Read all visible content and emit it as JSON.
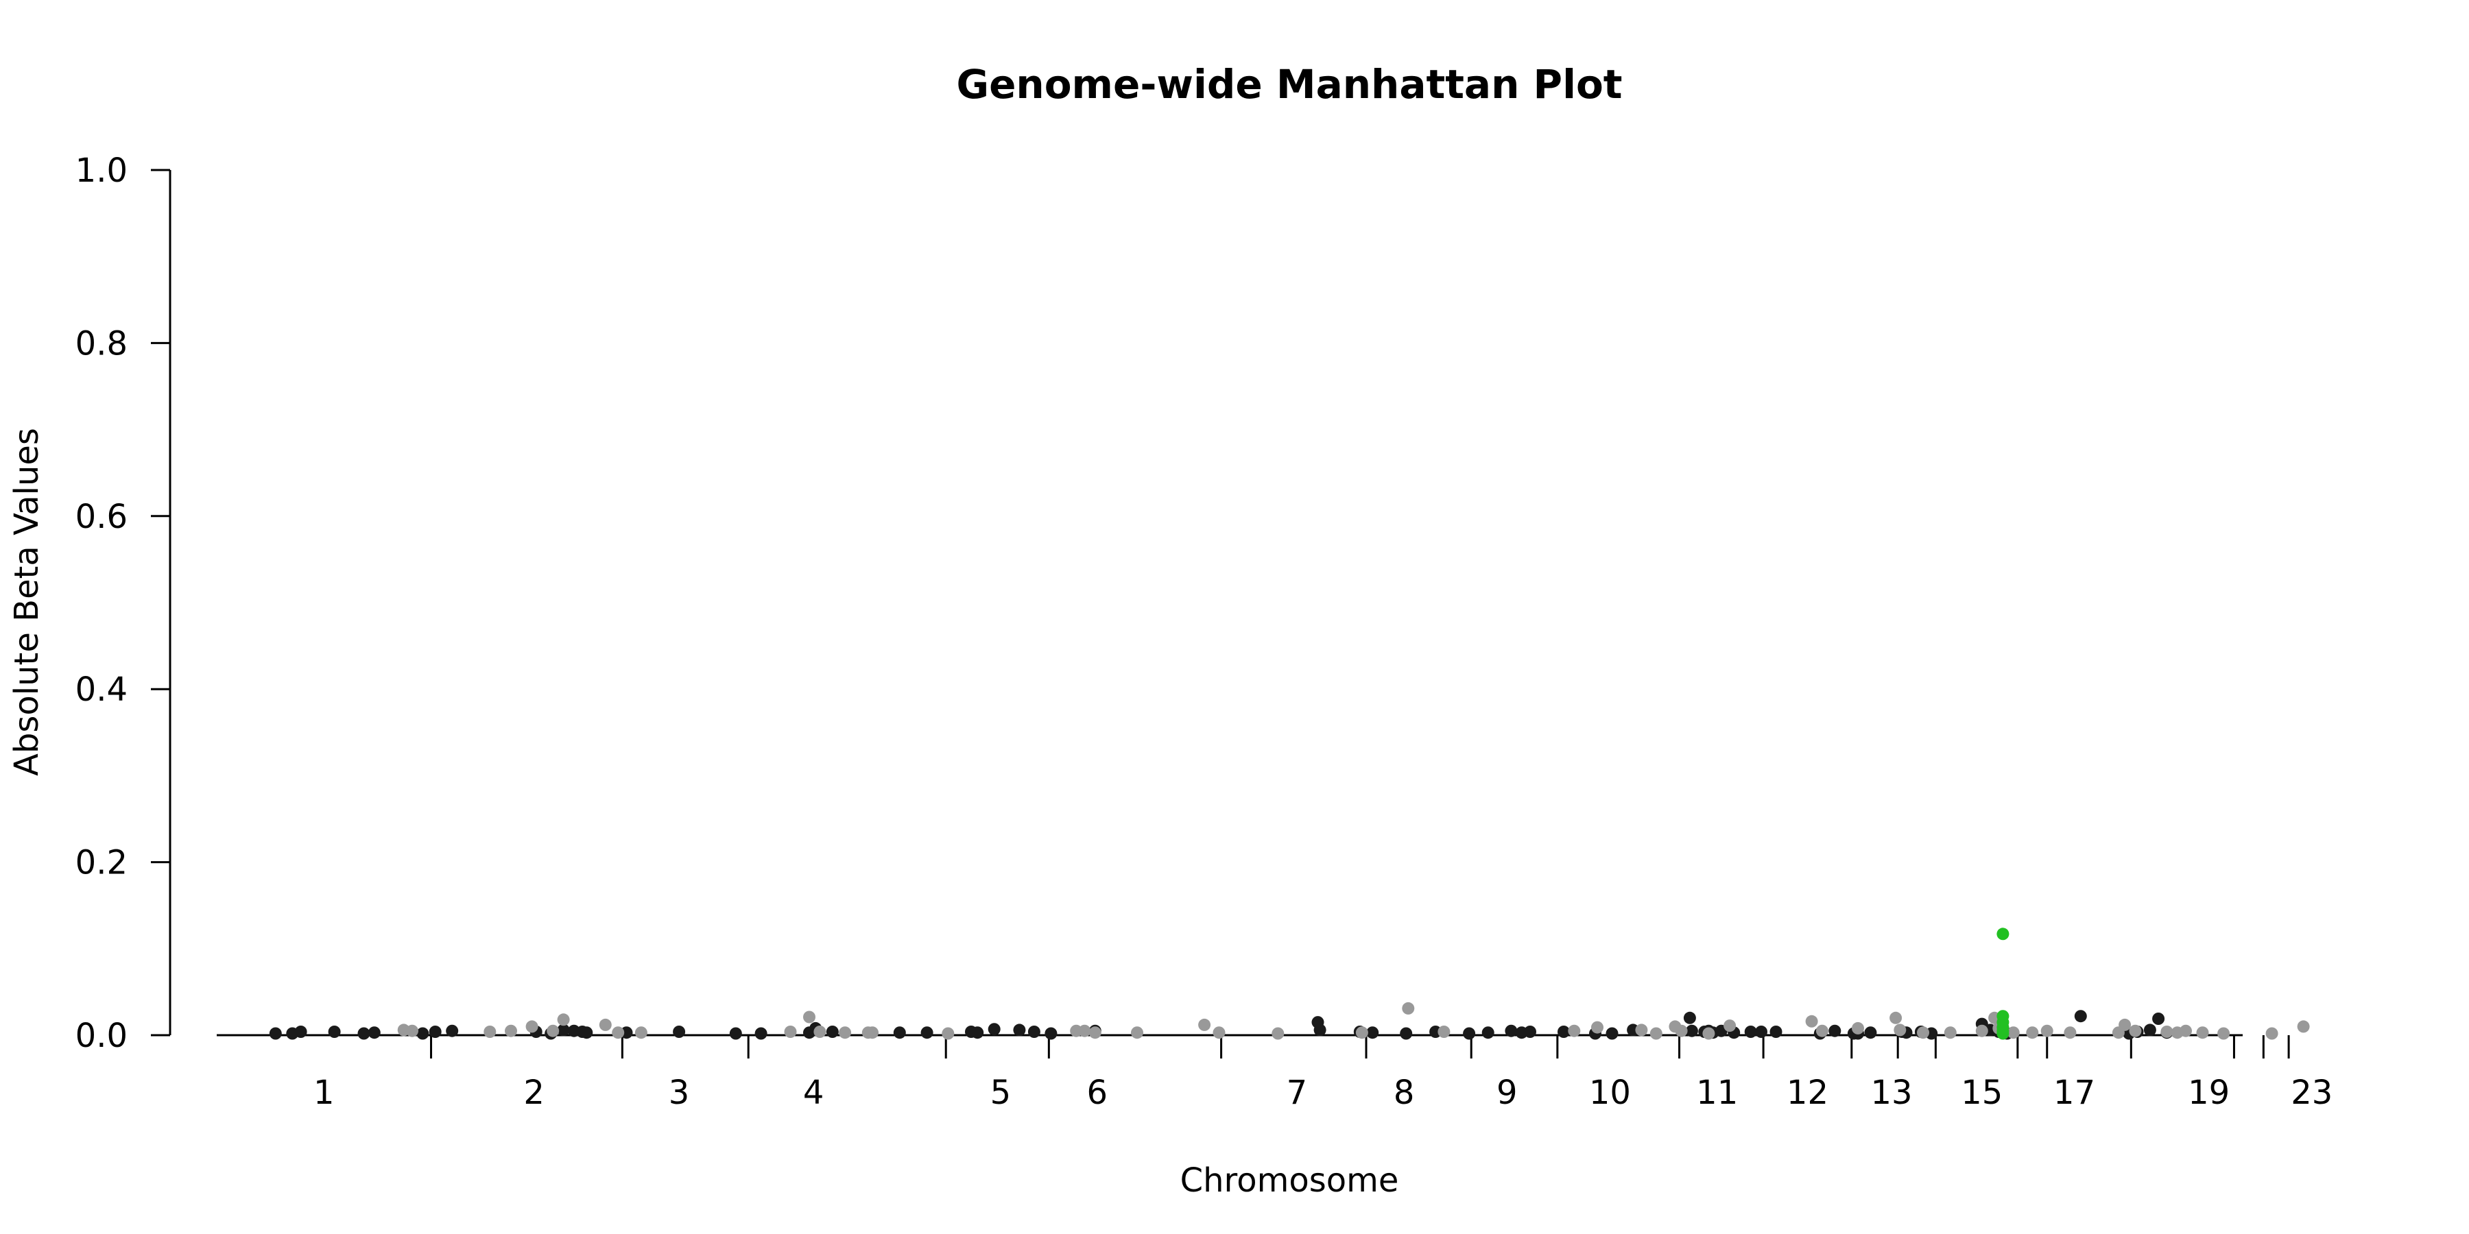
{
  "chart_data": {
    "type": "scatter",
    "title": "Genome-wide Manhattan Plot",
    "xlabel": "Chromosome",
    "ylabel": "Absolute Beta Values",
    "ylim": [
      0,
      1
    ],
    "yticks": [
      "0.0",
      "0.2",
      "0.4",
      "0.6",
      "0.8",
      "1.0"
    ],
    "xtick_labels": [
      "1",
      "2",
      "3",
      "4",
      "5",
      "6",
      "7",
      "8",
      "9",
      "10",
      "11",
      "12",
      "13",
      "15",
      "17",
      "19",
      "23"
    ],
    "grid": false,
    "legend": "none",
    "colors": {
      "odd_chromosome": "#1a1a1a",
      "even_chromosome": "#999999",
      "highlight": "#22c022"
    },
    "series": [
      {
        "color_key": "odd_chromosome",
        "points": [
          [
            0.028,
            0.002
          ],
          [
            0.036,
            0.002
          ],
          [
            0.04,
            0.004
          ],
          [
            0.056,
            0.004
          ],
          [
            0.07,
            0.002
          ],
          [
            0.075,
            0.003
          ],
          [
            0.098,
            0.002
          ],
          [
            0.104,
            0.004
          ],
          [
            0.112,
            0.005
          ],
          [
            0.152,
            0.004
          ],
          [
            0.159,
            0.002
          ],
          [
            0.165,
            0.006
          ],
          [
            0.17,
            0.005
          ],
          [
            0.174,
            0.004
          ],
          [
            0.176,
            0.003
          ],
          [
            0.195,
            0.003
          ],
          [
            0.22,
            0.004
          ],
          [
            0.247,
            0.002
          ],
          [
            0.259,
            0.002
          ],
          [
            0.282,
            0.003
          ],
          [
            0.285,
            0.008
          ],
          [
            0.293,
            0.004
          ],
          [
            0.325,
            0.003
          ],
          [
            0.338,
            0.003
          ],
          [
            0.359,
            0.004
          ],
          [
            0.362,
            0.003
          ],
          [
            0.37,
            0.007
          ],
          [
            0.382,
            0.006
          ],
          [
            0.389,
            0.004
          ],
          [
            0.397,
            0.002
          ],
          [
            0.418,
            0.005
          ],
          [
            0.524,
            0.015
          ],
          [
            0.525,
            0.006
          ],
          [
            0.544,
            0.004
          ],
          [
            0.55,
            0.003
          ],
          [
            0.566,
            0.002
          ],
          [
            0.58,
            0.004
          ],
          [
            0.596,
            0.002
          ],
          [
            0.605,
            0.003
          ],
          [
            0.616,
            0.005
          ],
          [
            0.621,
            0.003
          ],
          [
            0.625,
            0.004
          ],
          [
            0.641,
            0.004
          ],
          [
            0.656,
            0.002
          ],
          [
            0.664,
            0.002
          ],
          [
            0.674,
            0.006
          ],
          [
            0.701,
            0.02
          ],
          [
            0.702,
            0.005
          ],
          [
            0.708,
            0.004
          ],
          [
            0.71,
            0.005
          ],
          [
            0.712,
            0.003
          ],
          [
            0.716,
            0.005
          ],
          [
            0.722,
            0.003
          ],
          [
            0.73,
            0.004
          ],
          [
            0.735,
            0.004
          ],
          [
            0.742,
            0.004
          ],
          [
            0.763,
            0.002
          ],
          [
            0.77,
            0.005
          ],
          [
            0.779,
            0.002
          ],
          [
            0.781,
            0.002
          ],
          [
            0.787,
            0.003
          ],
          [
            0.802,
            0.004
          ],
          [
            0.804,
            0.003
          ],
          [
            0.811,
            0.004
          ],
          [
            0.816,
            0.002
          ],
          [
            0.84,
            0.013
          ],
          [
            0.844,
            0.006
          ],
          [
            0.848,
            0.004
          ],
          [
            0.852,
            0.002
          ],
          [
            0.887,
            0.022
          ],
          [
            0.91,
            0.002
          ],
          [
            0.914,
            0.004
          ],
          [
            0.92,
            0.006
          ],
          [
            0.924,
            0.019
          ],
          [
            0.928,
            0.003
          ]
        ]
      },
      {
        "color_key": "even_chromosome",
        "points": [
          [
            0.089,
            0.006
          ],
          [
            0.093,
            0.005
          ],
          [
            0.13,
            0.004
          ],
          [
            0.14,
            0.005
          ],
          [
            0.15,
            0.01
          ],
          [
            0.16,
            0.005
          ],
          [
            0.165,
            0.018
          ],
          [
            0.185,
            0.012
          ],
          [
            0.191,
            0.003
          ],
          [
            0.202,
            0.003
          ],
          [
            0.273,
            0.004
          ],
          [
            0.282,
            0.021
          ],
          [
            0.287,
            0.004
          ],
          [
            0.299,
            0.003
          ],
          [
            0.31,
            0.003
          ],
          [
            0.312,
            0.003
          ],
          [
            0.348,
            0.002
          ],
          [
            0.409,
            0.005
          ],
          [
            0.413,
            0.005
          ],
          [
            0.418,
            0.003
          ],
          [
            0.438,
            0.003
          ],
          [
            0.47,
            0.012
          ],
          [
            0.477,
            0.003
          ],
          [
            0.505,
            0.002
          ],
          [
            0.545,
            0.003
          ],
          [
            0.567,
            0.031
          ],
          [
            0.584,
            0.004
          ],
          [
            0.646,
            0.005
          ],
          [
            0.657,
            0.009
          ],
          [
            0.678,
            0.006
          ],
          [
            0.685,
            0.002
          ],
          [
            0.694,
            0.01
          ],
          [
            0.697,
            0.005
          ],
          [
            0.71,
            0.002
          ],
          [
            0.72,
            0.011
          ],
          [
            0.759,
            0.016
          ],
          [
            0.764,
            0.005
          ],
          [
            0.781,
            0.008
          ],
          [
            0.799,
            0.02
          ],
          [
            0.801,
            0.006
          ],
          [
            0.812,
            0.003
          ],
          [
            0.825,
            0.003
          ],
          [
            0.84,
            0.005
          ],
          [
            0.846,
            0.02
          ],
          [
            0.848,
            0.008
          ],
          [
            0.85,
            0.005
          ],
          [
            0.855,
            0.003
          ],
          [
            0.864,
            0.003
          ],
          [
            0.871,
            0.005
          ],
          [
            0.882,
            0.003
          ],
          [
            0.905,
            0.003
          ],
          [
            0.908,
            0.012
          ],
          [
            0.913,
            0.005
          ],
          [
            0.928,
            0.004
          ],
          [
            0.933,
            0.003
          ],
          [
            0.937,
            0.005
          ],
          [
            0.945,
            0.003
          ],
          [
            0.955,
            0.002
          ],
          [
            0.978,
            0.002
          ],
          [
            0.993,
            0.01
          ]
        ]
      },
      {
        "color_key": "highlight",
        "points": [
          [
            0.85,
            0.117
          ],
          [
            0.85,
            0.022
          ],
          [
            0.85,
            0.015
          ],
          [
            0.85,
            0.009
          ],
          [
            0.85,
            0.005
          ],
          [
            0.85,
            0.002
          ]
        ]
      }
    ]
  }
}
